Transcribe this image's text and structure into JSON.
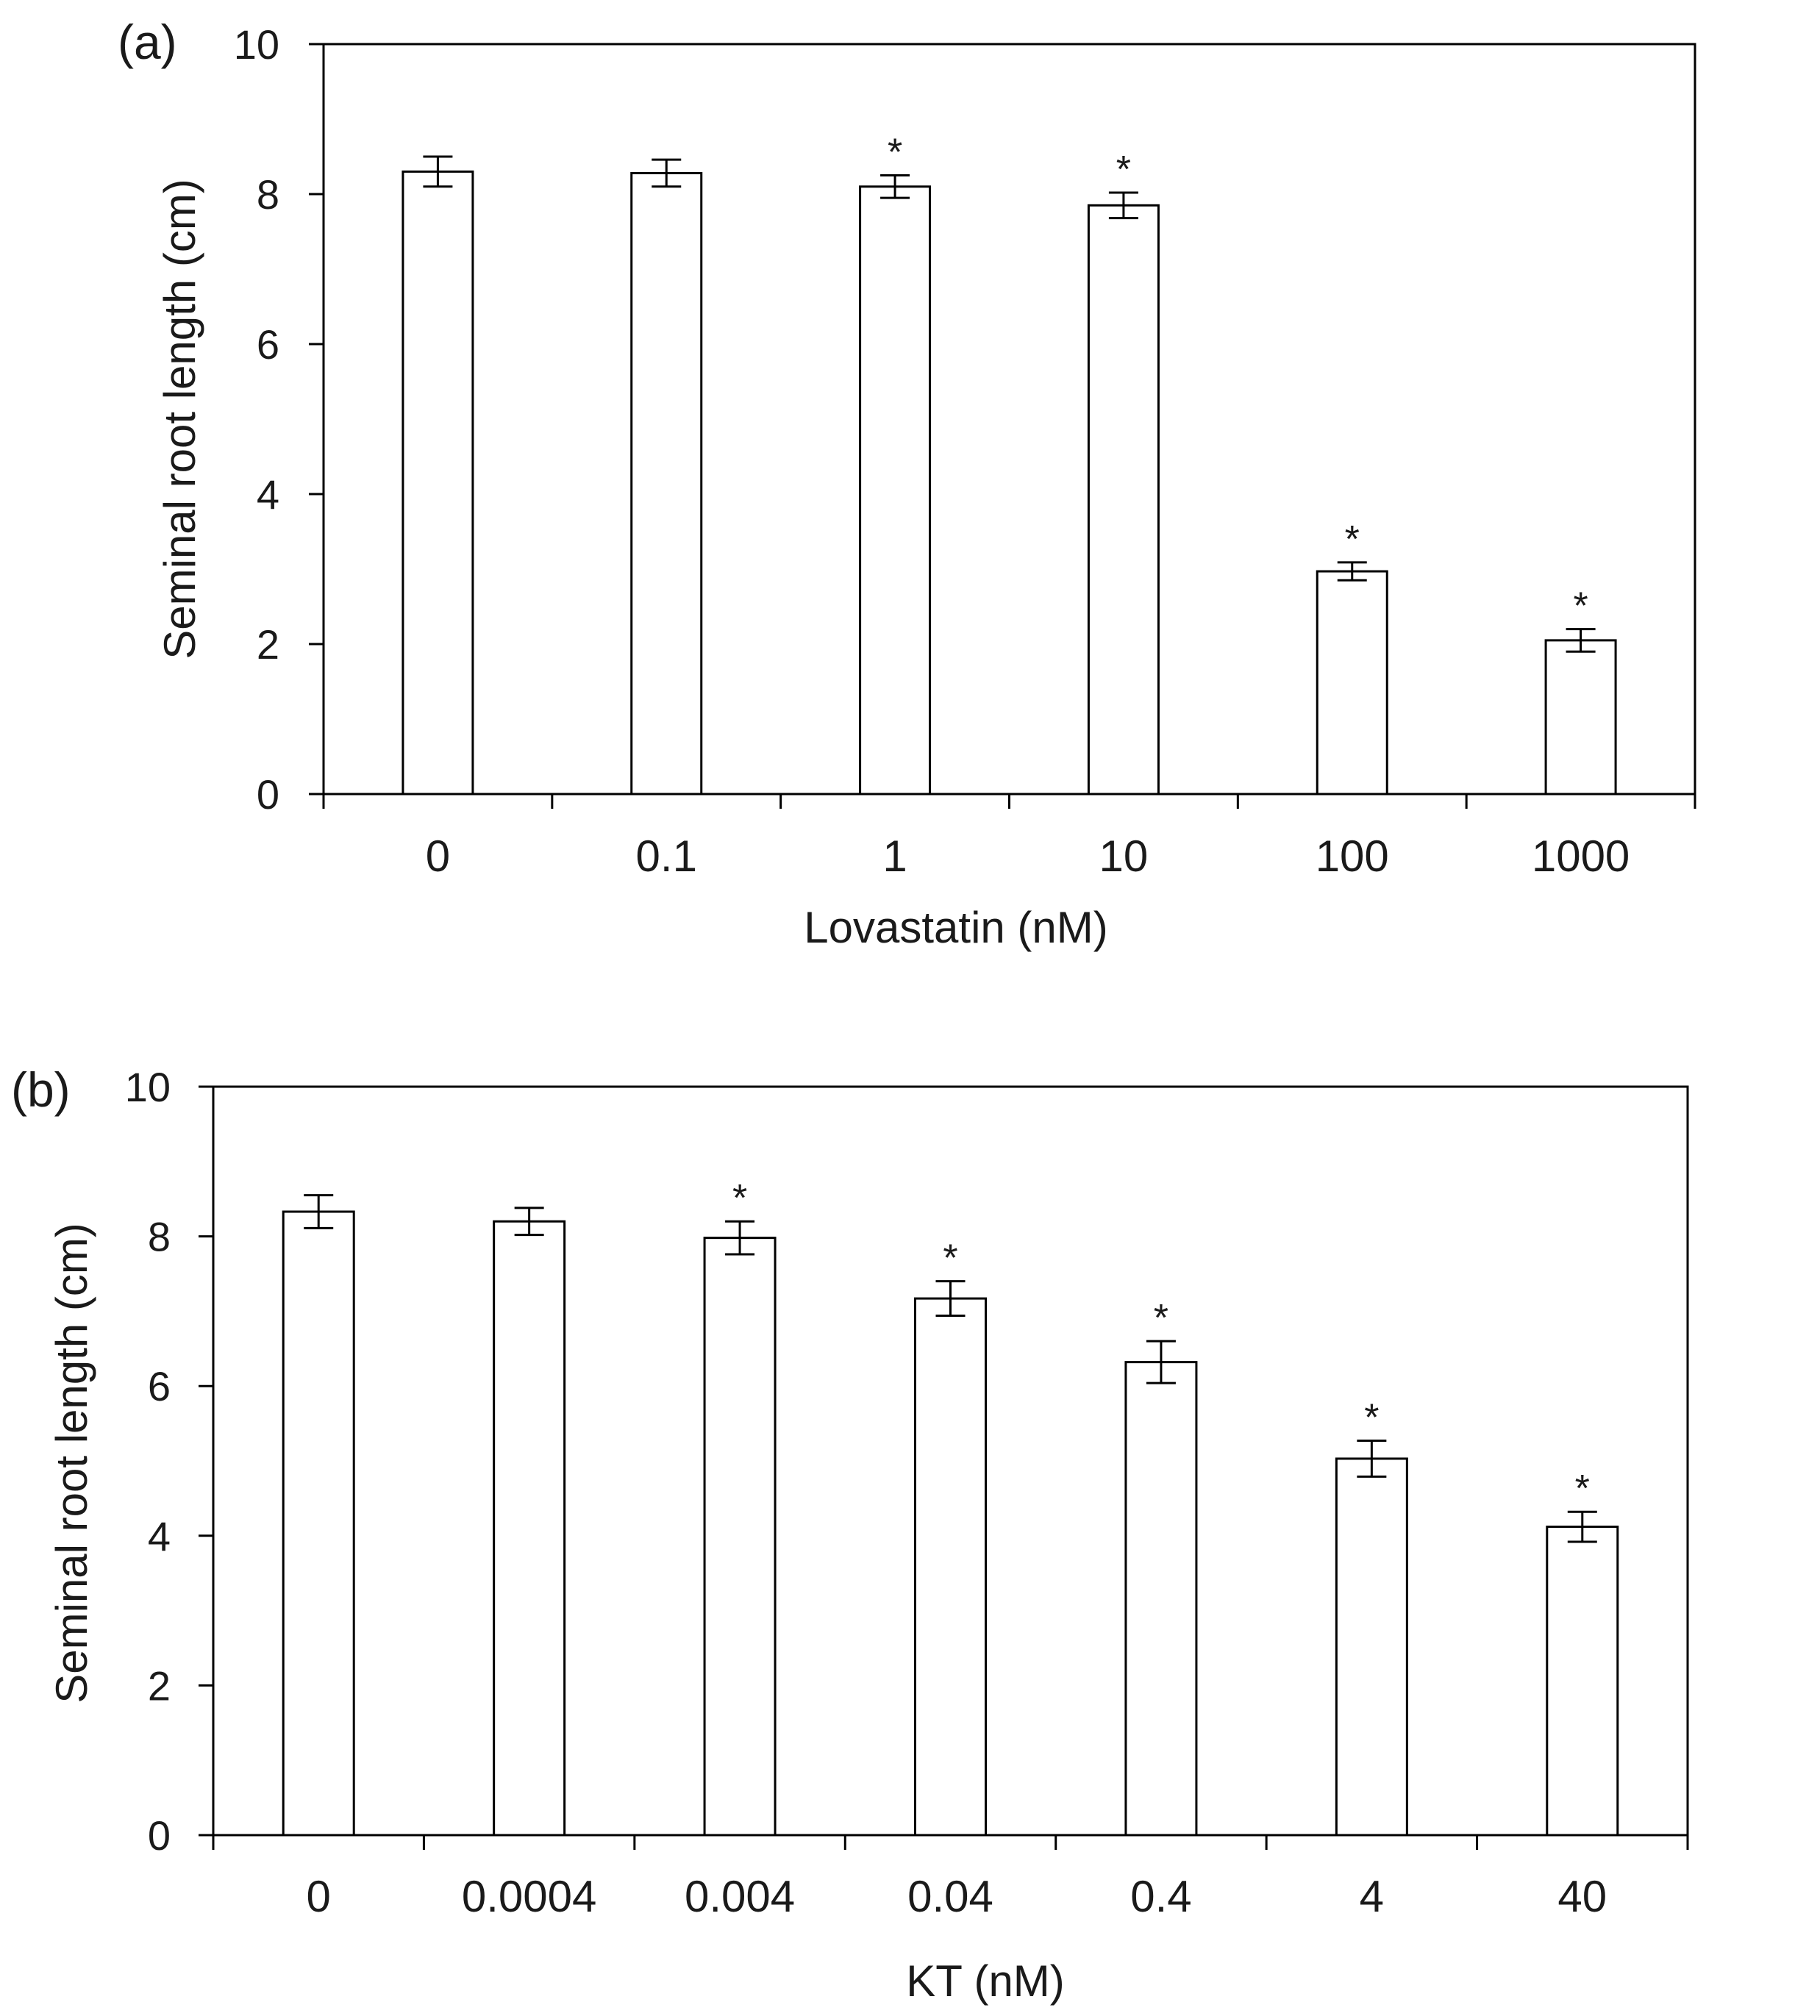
{
  "chart_data": [
    {
      "type": "bar",
      "panel_label": "(a)",
      "title": "",
      "xlabel": "Lovastatin (nM)",
      "ylabel": "Seminal root length (cm)",
      "ylim": [
        0,
        10
      ],
      "yticks": [
        "0",
        "2",
        "4",
        "6",
        "8",
        "10"
      ],
      "grid": false,
      "categories": [
        "0",
        "0.1",
        "1",
        "10",
        "100",
        "1000"
      ],
      "values": [
        8.3,
        8.28,
        8.1,
        7.85,
        2.97,
        2.05
      ],
      "errors": [
        0.2,
        0.18,
        0.15,
        0.17,
        0.12,
        0.15
      ],
      "significance": [
        "",
        "",
        "*",
        "*",
        "*",
        "*"
      ],
      "bar_color": "#ffffff",
      "edge_color": "#000000"
    },
    {
      "type": "bar",
      "panel_label": "(b)",
      "title": "",
      "xlabel": "KT (nM)",
      "ylabel": "Seminal root length (cm)",
      "ylim": [
        0,
        10
      ],
      "yticks": [
        "0",
        "2",
        "4",
        "6",
        "8",
        "10"
      ],
      "grid": false,
      "categories": [
        "0",
        "0.0004",
        "0.004",
        "0.04",
        "0.4",
        "4",
        "40"
      ],
      "values": [
        8.33,
        8.2,
        7.98,
        7.17,
        6.32,
        5.03,
        4.12
      ],
      "errors": [
        0.22,
        0.18,
        0.22,
        0.23,
        0.28,
        0.24,
        0.2
      ],
      "significance": [
        "",
        "",
        "*",
        "*",
        "*",
        "*",
        "*"
      ],
      "bar_color": "#ffffff",
      "edge_color": "#000000"
    }
  ]
}
